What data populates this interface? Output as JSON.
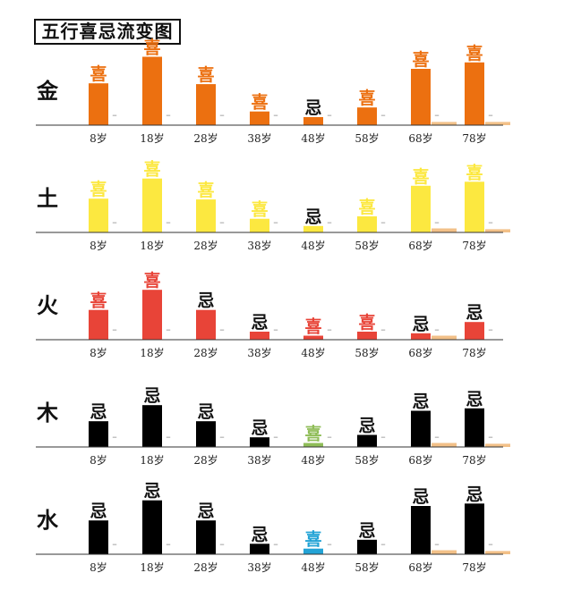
{
  "title": "五行喜忌流变图",
  "chart_data": {
    "type": "bar",
    "categories": [
      "8岁",
      "18岁",
      "28岁",
      "38岁",
      "48岁",
      "58岁",
      "68岁",
      "78岁"
    ],
    "ylim": [
      0,
      100
    ],
    "panels": [
      {
        "element": "金",
        "color": "#ec7010",
        "values": [
          52,
          85,
          51,
          17,
          10,
          22,
          70,
          78
        ],
        "labels": [
          "喜",
          "喜",
          "喜",
          "喜",
          "忌",
          "喜",
          "喜",
          "喜"
        ],
        "secondary": [
          0,
          0,
          0,
          0,
          0,
          0,
          4,
          4
        ],
        "secondary_color": "#f2c088"
      },
      {
        "element": "土",
        "color": "#fce840",
        "values": [
          42,
          67,
          41,
          17,
          8,
          20,
          58,
          63
        ],
        "labels": [
          "喜",
          "喜",
          "喜",
          "喜",
          "忌",
          "喜",
          "喜",
          "喜"
        ],
        "secondary": [
          0,
          0,
          0,
          0,
          0,
          0,
          5,
          4
        ],
        "secondary_color": "#f2c088"
      },
      {
        "element": "火",
        "color": "#e84438",
        "values": [
          37,
          62,
          37,
          10,
          5,
          10,
          8,
          22
        ],
        "labels": [
          "喜",
          "喜",
          "忌",
          "忌",
          "喜",
          "喜",
          "忌",
          "忌"
        ],
        "secondary": [
          0,
          0,
          0,
          0,
          0,
          0,
          5,
          0
        ],
        "secondary_color": "#f2c088"
      },
      {
        "element": "木",
        "color": "#000000",
        "values": [
          32,
          52,
          32,
          12,
          5,
          15,
          45,
          48
        ],
        "labels": [
          "忌",
          "忌",
          "忌",
          "忌",
          "喜",
          "忌",
          "忌",
          "忌"
        ],
        "secondary": [
          0,
          0,
          0,
          0,
          0,
          0,
          5,
          4
        ],
        "secondary_color": "#f2c088"
      },
      {
        "element": "水",
        "color": "#000000",
        "values": [
          42,
          67,
          42,
          13,
          7,
          18,
          60,
          63
        ],
        "labels": [
          "忌",
          "忌",
          "忌",
          "忌",
          "喜",
          "忌",
          "忌",
          "忌"
        ],
        "secondary": [
          0,
          0,
          0,
          0,
          0,
          0,
          5,
          4
        ],
        "secondary_color": "#f2c088"
      }
    ],
    "overrides": [
      {
        "panel": 2,
        "index": 4,
        "color": "#e84438"
      },
      {
        "panel": 2,
        "index": 5,
        "color": "#e84438"
      },
      {
        "panel": 3,
        "index": 4,
        "color": "#8fbd58"
      },
      {
        "panel": 4,
        "index": 4,
        "color": "#23a3d6"
      }
    ],
    "label_colors": {
      "喜_default": "panel",
      "忌": "#111111"
    },
    "minor_marker": "–",
    "minor_marker_color": "#aaaaaa",
    "axis_color": "#333333"
  }
}
